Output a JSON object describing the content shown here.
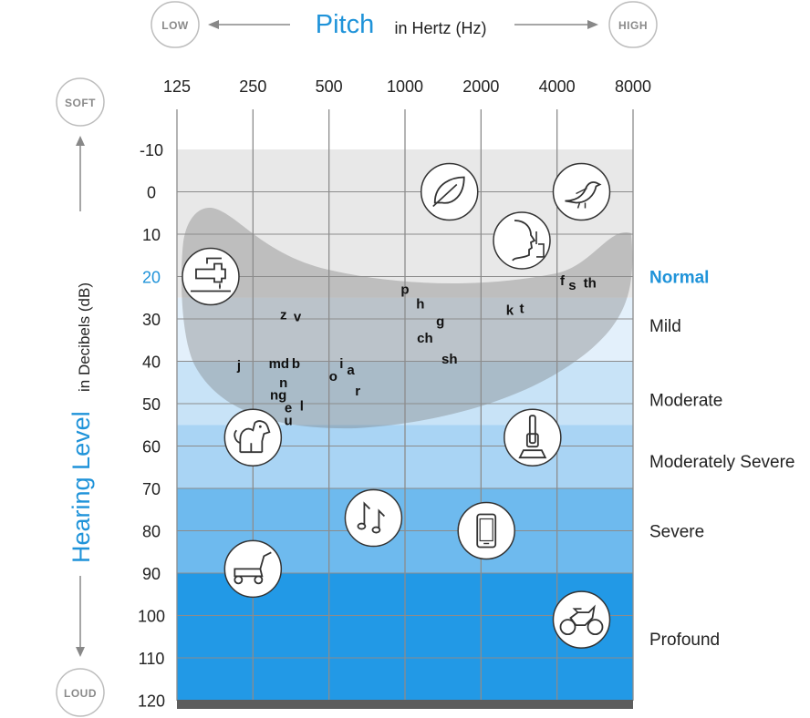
{
  "chart_data": {
    "type": "heatmap",
    "title": "Pitch",
    "title_suffix": "in Hertz (Hz)",
    "ylabel": "Hearing Level",
    "ylabel_suffix": "in Decibels (dB)",
    "pitch_low_label": "LOW",
    "pitch_high_label": "HIGH",
    "level_soft_label": "SOFT",
    "level_loud_label": "LOUD",
    "x_ticks": [
      "125",
      "250",
      "500",
      "1000",
      "2000",
      "4000",
      "8000"
    ],
    "y_ticks": [
      "-10",
      "0",
      "10",
      "20",
      "30",
      "40",
      "50",
      "60",
      "70",
      "80",
      "90",
      "100",
      "110",
      "120"
    ],
    "ylim": [
      -10,
      120
    ],
    "bands": [
      {
        "name": "Normal",
        "from": -10,
        "to": 25,
        "color": "#e8e8e8"
      },
      {
        "name": "Mild",
        "from": 25,
        "to": 40,
        "color": "#e3f0fb"
      },
      {
        "name": "Moderate",
        "from": 40,
        "to": 55,
        "color": "#c8e3f7"
      },
      {
        "name": "Moderately Severe",
        "from": 55,
        "to": 70,
        "color": "#a9d4f4"
      },
      {
        "name": "Severe",
        "from": 70,
        "to": 90,
        "color": "#6ebaee"
      },
      {
        "name": "Profound",
        "from": 90,
        "to": 120,
        "color": "#2299e6"
      }
    ],
    "speech_sounds": [
      {
        "text": "z",
        "x": 330,
        "y": 29
      },
      {
        "text": "v",
        "x": 375,
        "y": 29.5
      },
      {
        "text": "j",
        "x": 220,
        "y": 41
      },
      {
        "text": "m",
        "x": 305,
        "y": 40.5
      },
      {
        "text": "d",
        "x": 335,
        "y": 40.5
      },
      {
        "text": "b",
        "x": 370,
        "y": 40.5
      },
      {
        "text": "n",
        "x": 330,
        "y": 45
      },
      {
        "text": "ng",
        "x": 315,
        "y": 48
      },
      {
        "text": "e",
        "x": 345,
        "y": 51
      },
      {
        "text": "l",
        "x": 390,
        "y": 50.5
      },
      {
        "text": "u",
        "x": 345,
        "y": 54
      },
      {
        "text": "o",
        "x": 520,
        "y": 43.5
      },
      {
        "text": "i",
        "x": 560,
        "y": 40.5
      },
      {
        "text": "a",
        "x": 610,
        "y": 42
      },
      {
        "text": "r",
        "x": 650,
        "y": 47
      },
      {
        "text": "p",
        "x": 1000,
        "y": 23
      },
      {
        "text": "h",
        "x": 1150,
        "y": 26.5
      },
      {
        "text": "g",
        "x": 1380,
        "y": 30.5
      },
      {
        "text": "ch",
        "x": 1200,
        "y": 34.5
      },
      {
        "text": "sh",
        "x": 1500,
        "y": 39.5
      },
      {
        "text": "k",
        "x": 2600,
        "y": 28
      },
      {
        "text": "t",
        "x": 2900,
        "y": 27.5
      },
      {
        "text": "f",
        "x": 4200,
        "y": 21
      },
      {
        "text": "s",
        "x": 4600,
        "y": 22
      },
      {
        "text": "th",
        "x": 5400,
        "y": 21.5
      }
    ],
    "environmental_sounds": [
      {
        "icon": "faucet-icon",
        "x": 170,
        "y": 20
      },
      {
        "icon": "leaf-icon",
        "x": 1500,
        "y": 0
      },
      {
        "icon": "bird-icon",
        "x": 5000,
        "y": 0
      },
      {
        "icon": "whisper-icon",
        "x": 2900,
        "y": 11.5
      },
      {
        "icon": "dog-icon",
        "x": 250,
        "y": 58
      },
      {
        "icon": "vacuum-icon",
        "x": 3200,
        "y": 58
      },
      {
        "icon": "music-notes-icon",
        "x": 750,
        "y": 77
      },
      {
        "icon": "phone-icon",
        "x": 2100,
        "y": 80
      },
      {
        "icon": "lawnmower-icon",
        "x": 250,
        "y": 89
      },
      {
        "icon": "motorcycle-icon",
        "x": 5000,
        "y": 101
      }
    ],
    "speech_banana_color": "#8a8a8a",
    "accent_color": "#1f93d9"
  }
}
